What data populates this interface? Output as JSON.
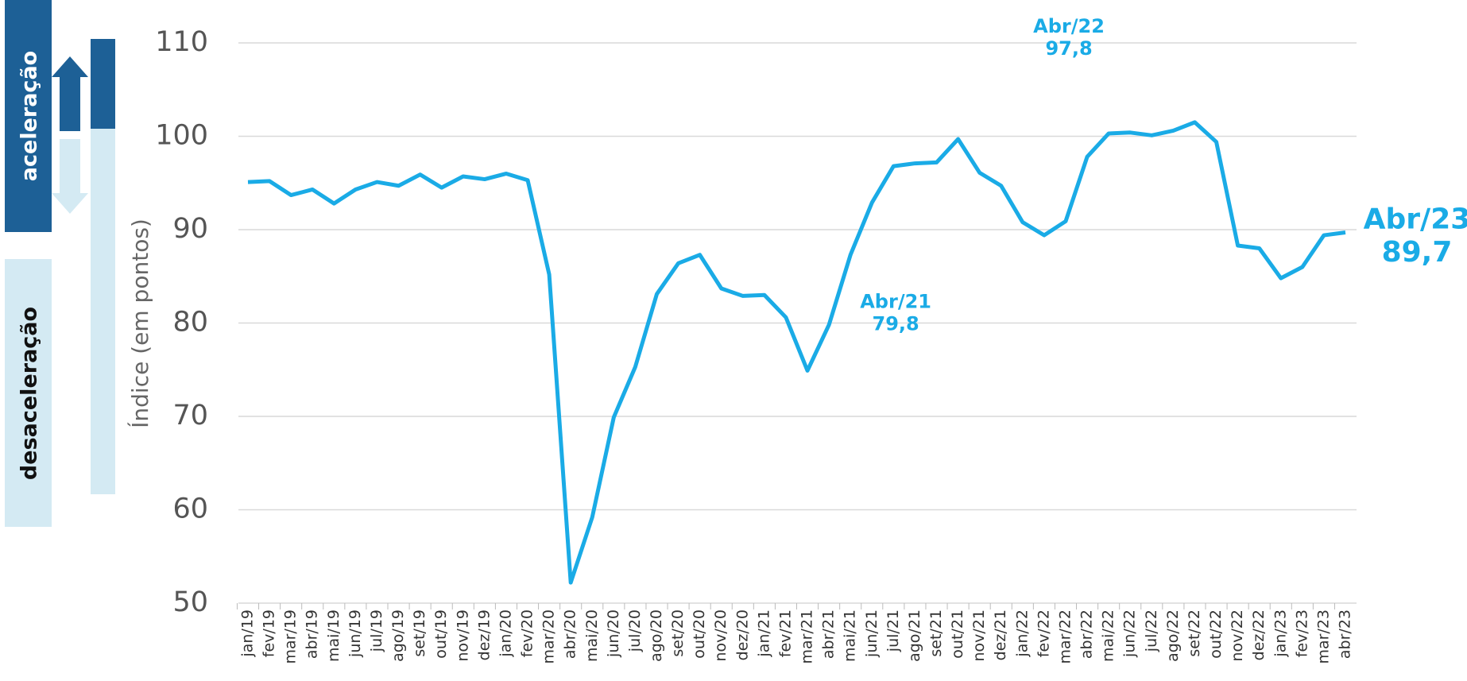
{
  "chart_data": {
    "type": "line",
    "y_axis_label": "Índice (em pontos)",
    "legend_up": "aceleração",
    "legend_down": "desaceleração",
    "categories": [
      "jan/19",
      "fev/19",
      "mar/19",
      "abr/19",
      "mai/19",
      "jun/19",
      "jul/19",
      "ago/19",
      "set/19",
      "out/19",
      "nov/19",
      "dez/19",
      "jan/20",
      "fev/20",
      "mar/20",
      "abr/20",
      "mai/20",
      "jun/20",
      "jul/20",
      "ago/20",
      "set/20",
      "out/20",
      "nov/20",
      "dez/20",
      "jan/21",
      "fev/21",
      "mar/21",
      "abr/21",
      "mai/21",
      "jun/21",
      "jul/21",
      "ago/21",
      "set/21",
      "out/21",
      "nov/21",
      "dez/21",
      "jan/22",
      "fev/22",
      "mar/22",
      "abr/22",
      "mai/22",
      "jun/22",
      "jul/22",
      "ago/22",
      "set/22",
      "out/22",
      "nov/22",
      "dez/22",
      "jan/23",
      "fev/23",
      "mar/23",
      "abr/23"
    ],
    "values": [
      95.1,
      95.2,
      93.7,
      94.3,
      92.8,
      94.3,
      95.1,
      94.7,
      95.9,
      94.5,
      95.7,
      95.4,
      96.0,
      95.3,
      85.2,
      52.2,
      59.2,
      69.9,
      75.3,
      83.1,
      86.4,
      87.3,
      83.7,
      82.9,
      83.0,
      80.6,
      74.9,
      79.8,
      87.3,
      92.9,
      96.8,
      97.1,
      97.2,
      99.7,
      96.1,
      94.7,
      90.8,
      89.4,
      90.9,
      97.8,
      100.3,
      100.4,
      100.1,
      100.6,
      101.5,
      99.4,
      88.3,
      88.0,
      84.8,
      86.0,
      89.4,
      89.7
    ],
    "value_labels": [
      null,
      null,
      null,
      null,
      null,
      null,
      null,
      null,
      null,
      null,
      null,
      null,
      null,
      null,
      null,
      null,
      null,
      null,
      null,
      null,
      null,
      null,
      null,
      null,
      null,
      null,
      null,
      "79,8",
      null,
      null,
      null,
      null,
      null,
      null,
      null,
      null,
      null,
      null,
      null,
      "97,8",
      null,
      null,
      null,
      null,
      null,
      null,
      null,
      null,
      null,
      null,
      null,
      "89,7"
    ],
    "annotations": [
      "Abr/21",
      "Abr/22",
      "Abr/23"
    ],
    "color": "#1aabe6",
    "ylim": [
      50,
      110
    ],
    "yticks": [
      50,
      60,
      70,
      80,
      90,
      100,
      110
    ],
    "grid": true
  }
}
